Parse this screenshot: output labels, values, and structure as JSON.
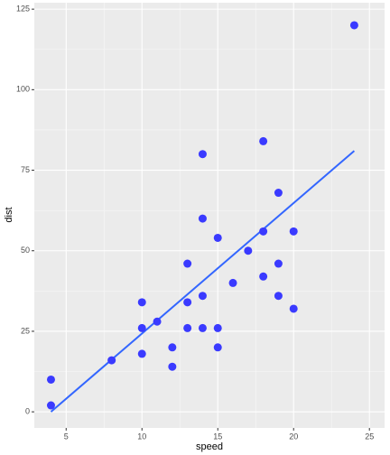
{
  "chart_data": {
    "type": "scatter",
    "x_label": "speed",
    "y_label": "dist",
    "series": [
      {
        "color": "#3a3aff",
        "x": [
          4,
          4,
          8,
          10,
          10,
          10,
          11,
          12,
          12,
          13,
          13,
          13,
          14,
          14,
          14,
          14,
          15,
          15,
          15,
          16,
          17,
          18,
          18,
          18,
          19,
          19,
          19,
          20,
          20,
          24
        ],
        "values": [
          2,
          10,
          16,
          18,
          26,
          34,
          28,
          20,
          14,
          26,
          34,
          46,
          26,
          36,
          60,
          80,
          26,
          20,
          54,
          40,
          50,
          42,
          56,
          84,
          36,
          46,
          68,
          32,
          56,
          120
        ]
      }
    ],
    "fit": {
      "color": "#3366ff",
      "x": [
        4,
        24
      ],
      "values": [
        0,
        81
      ]
    },
    "xlim": [
      2.9,
      26.0
    ],
    "xticks": [
      5,
      10,
      15,
      20,
      25
    ],
    "ylim": [
      -5,
      127
    ],
    "yticks": [
      0,
      25,
      50,
      75,
      100,
      125
    ],
    "grid": true
  }
}
